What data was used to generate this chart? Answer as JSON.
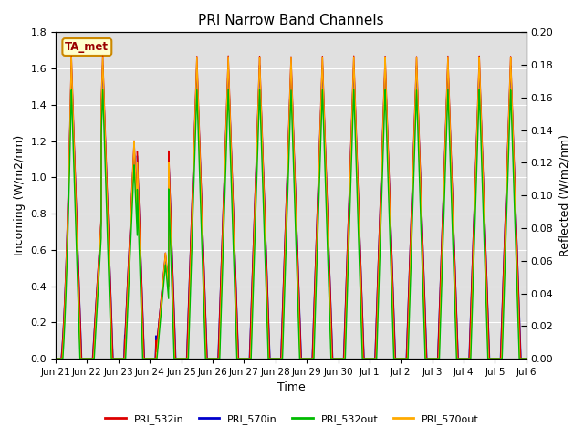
{
  "title": "PRI Narrow Band Channels",
  "xlabel": "Time",
  "ylabel_left": "Incoming (W/m2/nm)",
  "ylabel_right": "Reflected (W/m2/nm)",
  "ylim_left": [
    0.0,
    1.8
  ],
  "ylim_right": [
    0.0,
    0.2
  ],
  "yticks_left": [
    0.0,
    0.2,
    0.4,
    0.6,
    0.8,
    1.0,
    1.2,
    1.4,
    1.6,
    1.8
  ],
  "yticks_right": [
    0.0,
    0.02,
    0.04,
    0.06,
    0.08,
    0.1,
    0.12,
    0.14,
    0.16,
    0.18,
    0.2
  ],
  "xtick_labels": [
    "Jun 21",
    "Jun 22",
    "Jun 23",
    "Jun 24",
    "Jun 25",
    "Jun 26",
    "Jun 27",
    "Jun 28",
    "Jun 29",
    "Jun 30",
    "Jul 1",
    "Jul 2",
    "Jul 3",
    "Jul 4",
    "Jul 5",
    "Jul 6"
  ],
  "annotation_text": "TA_met",
  "annotation_color": "#cc8800",
  "background_color": "#e0e0e0",
  "grid_color": "#ffffff",
  "series": [
    {
      "label": "PRI_532in",
      "color": "#dd0000",
      "lw": 1.0
    },
    {
      "label": "PRI_570in",
      "color": "#0000cc",
      "lw": 1.0
    },
    {
      "label": "PRI_532out",
      "color": "#00bb00",
      "lw": 1.0
    },
    {
      "label": "PRI_570out",
      "color": "#ffaa00",
      "lw": 1.0
    }
  ]
}
